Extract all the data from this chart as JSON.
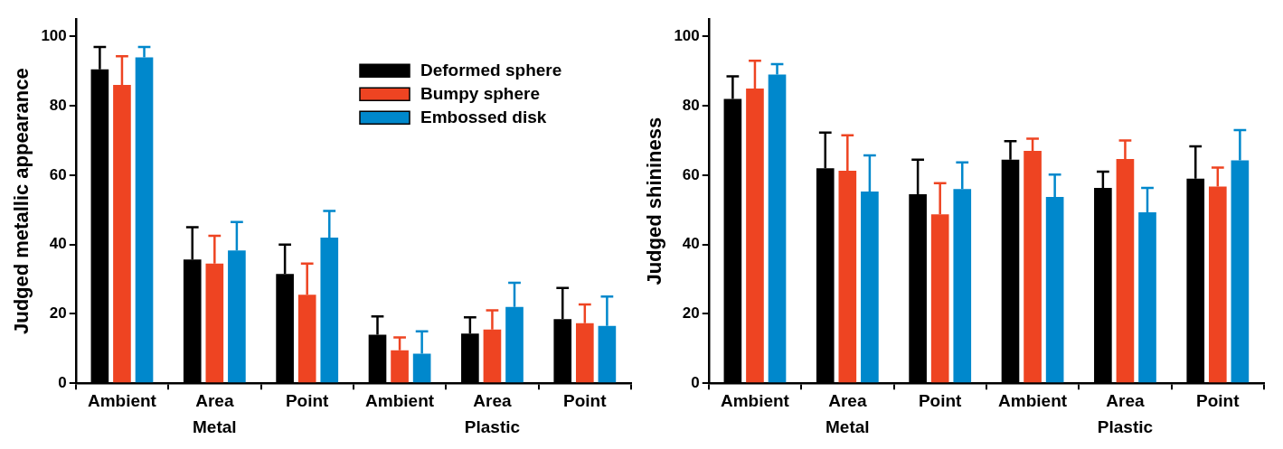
{
  "chart_data": [
    {
      "type": "bar",
      "ylabel": "Judged metallic appearance",
      "categories": [
        "Ambient",
        "Area",
        "Point",
        "Ambient",
        "Area",
        "Point"
      ],
      "annotations": [
        "Metal",
        "Plastic"
      ],
      "ylim": [
        0,
        105
      ],
      "yticks": [
        0,
        20,
        40,
        60,
        80,
        100
      ],
      "grid": false,
      "legend": "top right",
      "series": [
        {
          "name": "Deformed sphere",
          "color": "#000000",
          "values": [
            90.5,
            35.7,
            31.5,
            14,
            14.3,
            18.5
          ],
          "errors": [
            [
              90.5,
              97
            ],
            [
              35.7,
              45
            ],
            [
              31.5,
              40
            ],
            [
              14,
              19.3
            ],
            [
              14.3,
              19
            ],
            [
              18.5,
              27.5
            ]
          ]
        },
        {
          "name": "Bumpy sphere",
          "color": "#ee4422",
          "values": [
            86,
            34.5,
            25.5,
            9.5,
            15.5,
            17.3
          ],
          "errors": [
            [
              86,
              94.3
            ],
            [
              34.5,
              42.5
            ],
            [
              25.5,
              34.5
            ],
            [
              9.5,
              13.2
            ],
            [
              15.5,
              21
            ],
            [
              17.3,
              22.7
            ]
          ]
        },
        {
          "name": "Embossed disk",
          "color": "#0088cc",
          "values": [
            94,
            38.3,
            42,
            8.5,
            22,
            16.5
          ],
          "errors": [
            [
              94,
              97
            ],
            [
              38.3,
              46.5
            ],
            [
              42,
              49.7
            ],
            [
              8.5,
              15
            ],
            [
              22,
              29
            ],
            [
              16.5,
              25
            ]
          ]
        }
      ]
    },
    {
      "type": "bar",
      "ylabel": "Judged shininess",
      "categories": [
        "Ambient",
        "Area",
        "Point",
        "Ambient",
        "Area",
        "Point"
      ],
      "annotations": [
        "Metal",
        "Plastic"
      ],
      "ylim": [
        0,
        105
      ],
      "yticks": [
        0,
        20,
        40,
        60,
        80,
        100
      ],
      "grid": false,
      "legend": false,
      "series": [
        {
          "color": "#000000",
          "values": [
            82,
            62,
            54.5,
            64.5,
            56.3,
            59
          ],
          "errors": [
            [
              82,
              88.5
            ],
            [
              62,
              72.3
            ],
            [
              54.5,
              64.5
            ],
            [
              64.5,
              69.8
            ],
            [
              56.3,
              61
            ],
            [
              59,
              68.3
            ]
          ]
        },
        {
          "color": "#ee4422",
          "values": [
            85,
            61.3,
            48.7,
            67,
            64.7,
            56.7
          ],
          "errors": [
            [
              85,
              93
            ],
            [
              61.3,
              71.5
            ],
            [
              48.7,
              57.7
            ],
            [
              67,
              70.5
            ],
            [
              64.7,
              70
            ],
            [
              56.7,
              62.2
            ]
          ]
        },
        {
          "color": "#0088cc",
          "values": [
            89,
            55.3,
            56,
            53.7,
            49.3,
            64.3
          ],
          "errors": [
            [
              89,
              92
            ],
            [
              55.3,
              65.7
            ],
            [
              56,
              63.7
            ],
            [
              53.7,
              60.2
            ],
            [
              49.3,
              56.3
            ],
            [
              64.3,
              73
            ]
          ]
        }
      ]
    }
  ]
}
